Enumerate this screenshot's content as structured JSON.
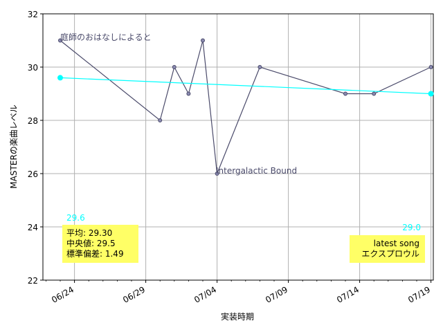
{
  "chart_data": {
    "type": "line",
    "xlabel": "実装時期",
    "ylabel": "MASTERの楽曲レベル",
    "ylim": [
      22,
      32
    ],
    "yticks": [
      22,
      24,
      26,
      28,
      30,
      32
    ],
    "xlim": [
      "2023-06-22",
      "2023-07-19"
    ],
    "xticks": [
      "2023-06-24",
      "2023-06-29",
      "2023-07-04",
      "2023-07-09",
      "2023-07-14",
      "2023-07-19"
    ],
    "xtick_labels": [
      "06/24",
      "06/29",
      "07/04",
      "07/09",
      "07/14",
      "07/19"
    ],
    "grid": true,
    "series": [
      {
        "color": "#4a4a6a",
        "points": [
          {
            "x": "2023-06-23",
            "y": 31
          },
          {
            "x": "2023-06-30",
            "y": 28
          },
          {
            "x": "2023-07-01",
            "y": 30
          },
          {
            "x": "2023-07-02",
            "y": 29
          },
          {
            "x": "2023-07-03",
            "y": 31
          },
          {
            "x": "2023-07-04",
            "y": 26
          },
          {
            "x": "2023-07-07",
            "y": 30
          },
          {
            "x": "2023-07-13",
            "y": 29
          },
          {
            "x": "2023-07-15",
            "y": 29
          },
          {
            "x": "2023-07-19",
            "y": 30
          }
        ]
      },
      {
        "color": "#00ffff",
        "points": [
          {
            "x": "2023-06-23",
            "y": 29.6
          },
          {
            "x": "2023-07-19",
            "y": 29.0
          }
        ]
      }
    ],
    "annotations": {
      "first_song": "庭師のおはなしによると",
      "lowest_song": "Intergalactic Bound",
      "trend_start_value": "29.6",
      "trend_end_value": "29.0"
    },
    "stats_box": [
      "平均: 29.30",
      "中央値: 29.5",
      "標準偏差:  1.49"
    ],
    "latest_box": [
      "latest song",
      "エクスプロウル"
    ],
    "colors": {
      "line": "#4a4a6a",
      "trend": "#00ffff",
      "box": "#ffff66",
      "grid": "#b0b0b0",
      "annotation_text": "#4a4a6a"
    }
  }
}
